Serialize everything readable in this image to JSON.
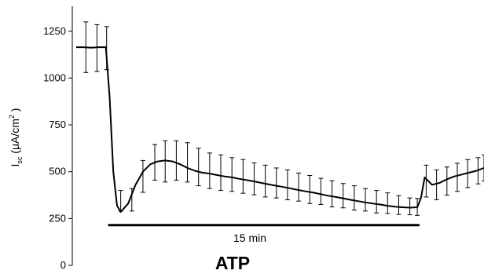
{
  "chart_data": {
    "type": "line",
    "title": "",
    "xlabel": "",
    "ylabel": {
      "main": "I",
      "subscript": "sc",
      "unit_open": " (μA/cm",
      "unit_sup": "2",
      "unit_close": " )"
    },
    "ylim": [
      0,
      1400
    ],
    "yticks": [
      0,
      250,
      500,
      750,
      1000,
      1250
    ],
    "ytick_labels": [
      "0",
      "250",
      "500",
      "750",
      "1000",
      "1250"
    ],
    "xlim": [
      0,
      55
    ],
    "grid": false,
    "legend": "none",
    "series": [
      {
        "x": [
          0,
          1,
          2,
          3,
          4,
          4.5,
          5,
          5.5,
          6,
          7,
          8,
          9,
          10,
          11,
          12,
          13,
          14,
          15,
          16,
          17,
          18,
          19,
          20,
          21,
          22,
          23,
          24,
          25,
          26,
          27,
          28,
          29,
          30,
          31,
          32,
          33,
          34,
          35,
          36,
          37,
          38,
          39,
          40,
          41,
          42,
          43,
          44,
          45,
          46,
          46.5,
          47,
          48,
          49,
          50,
          51,
          52,
          53,
          54,
          55
        ],
        "y": [
          1165,
          1165,
          1162,
          1165,
          1165,
          900,
          500,
          320,
          285,
          330,
          430,
          500,
          540,
          555,
          560,
          555,
          540,
          520,
          505,
          495,
          490,
          482,
          475,
          470,
          462,
          455,
          448,
          440,
          432,
          425,
          418,
          410,
          402,
          395,
          388,
          380,
          372,
          365,
          358,
          350,
          343,
          336,
          330,
          325,
          318,
          313,
          310,
          308,
          310,
          360,
          470,
          430,
          440,
          460,
          475,
          485,
          495,
          505,
          520
        ],
        "errors": [
          {
            "x": 1.3,
            "y": 1165,
            "err": 135
          },
          {
            "x": 2.8,
            "y": 1160,
            "err": 125
          },
          {
            "x": 4.1,
            "y": 1160,
            "err": 115
          },
          {
            "x": 6.0,
            "y": 345,
            "err": 55
          },
          {
            "x": 7.5,
            "y": 350,
            "err": 60
          },
          {
            "x": 9.0,
            "y": 475,
            "err": 85
          },
          {
            "x": 10.6,
            "y": 550,
            "err": 95
          },
          {
            "x": 12.0,
            "y": 555,
            "err": 110
          },
          {
            "x": 13.5,
            "y": 560,
            "err": 105
          },
          {
            "x": 15.0,
            "y": 550,
            "err": 105
          },
          {
            "x": 16.5,
            "y": 525,
            "err": 100
          },
          {
            "x": 18.0,
            "y": 505,
            "err": 95
          },
          {
            "x": 19.5,
            "y": 495,
            "err": 95
          },
          {
            "x": 21.0,
            "y": 485,
            "err": 90
          },
          {
            "x": 22.5,
            "y": 475,
            "err": 90
          },
          {
            "x": 24.0,
            "y": 462,
            "err": 85
          },
          {
            "x": 25.5,
            "y": 450,
            "err": 85
          },
          {
            "x": 27.0,
            "y": 440,
            "err": 80
          },
          {
            "x": 28.5,
            "y": 430,
            "err": 80
          },
          {
            "x": 30.0,
            "y": 418,
            "err": 75
          },
          {
            "x": 31.5,
            "y": 405,
            "err": 75
          },
          {
            "x": 33.0,
            "y": 395,
            "err": 70
          },
          {
            "x": 34.5,
            "y": 382,
            "err": 70
          },
          {
            "x": 36.0,
            "y": 372,
            "err": 65
          },
          {
            "x": 37.5,
            "y": 360,
            "err": 65
          },
          {
            "x": 39.0,
            "y": 350,
            "err": 60
          },
          {
            "x": 40.5,
            "y": 340,
            "err": 60
          },
          {
            "x": 42.0,
            "y": 332,
            "err": 55
          },
          {
            "x": 43.5,
            "y": 322,
            "err": 50
          },
          {
            "x": 45.0,
            "y": 315,
            "err": 45
          },
          {
            "x": 46.0,
            "y": 312,
            "err": 45
          },
          {
            "x": 47.2,
            "y": 450,
            "err": 85
          },
          {
            "x": 48.6,
            "y": 430,
            "err": 80
          },
          {
            "x": 50.0,
            "y": 450,
            "err": 75
          },
          {
            "x": 51.4,
            "y": 470,
            "err": 75
          },
          {
            "x": 52.8,
            "y": 490,
            "err": 75
          },
          {
            "x": 54.2,
            "y": 505,
            "err": 70
          },
          {
            "x": 55.0,
            "y": 520,
            "err": 70
          }
        ]
      }
    ],
    "annotations": {
      "treatment_bar": {
        "x_start": 4.3,
        "x_end": 46.3,
        "y": 215
      },
      "duration_label": "15 min",
      "stimulus_label": "ATP"
    }
  }
}
